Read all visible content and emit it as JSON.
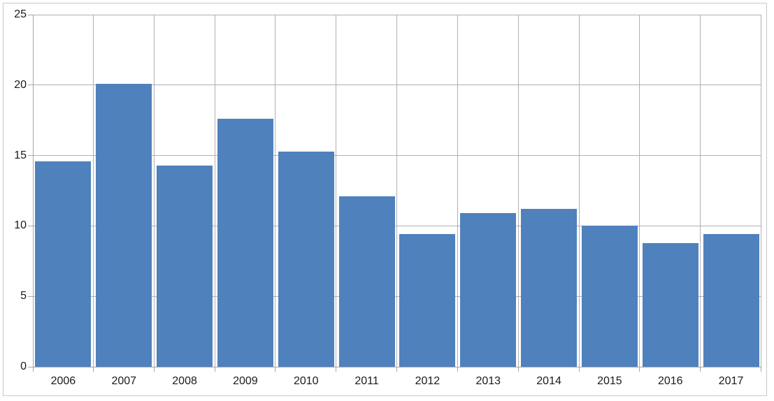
{
  "chart_data": {
    "type": "bar",
    "title": "",
    "xlabel": "",
    "ylabel": "",
    "categories": [
      "2006",
      "2007",
      "2008",
      "2009",
      "2010",
      "2011",
      "2012",
      "2013",
      "2014",
      "2015",
      "2016",
      "2017"
    ],
    "values": [
      14.6,
      20.1,
      14.3,
      17.6,
      15.3,
      12.1,
      9.4,
      10.9,
      11.2,
      10.0,
      8.8,
      9.4
    ],
    "ylim": [
      0,
      25
    ],
    "yticks": [
      0,
      5,
      10,
      15,
      20,
      25
    ],
    "grid": true,
    "legend": false,
    "colors": {
      "bar": "#4f81bd",
      "gridline": "#b0b0b0",
      "axis": "#a6a6a6",
      "label": "#1a1a1a",
      "frame_border": "#c9c9c9",
      "background": "#ffffff"
    }
  }
}
